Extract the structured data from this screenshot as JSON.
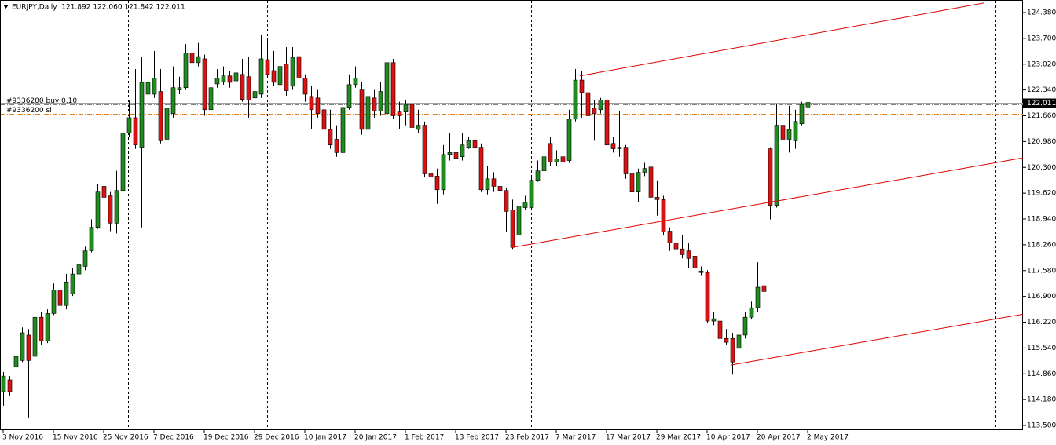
{
  "chart_data": {
    "type": "candlestick",
    "title": "EURJPY,Daily  121.892 122.060 121.842 122.011",
    "categories": [
      "3 Nov 2016",
      null,
      null,
      null,
      null,
      null,
      null,
      null,
      "15 Nov 2016",
      null,
      null,
      null,
      null,
      null,
      null,
      null,
      "25 Nov 2016",
      null,
      null,
      null,
      null,
      null,
      null,
      null,
      "7 Dec 2016",
      null,
      null,
      null,
      null,
      null,
      null,
      null,
      "19 Dec 2016",
      null,
      null,
      null,
      null,
      null,
      null,
      null,
      "29 Dec 2016",
      null,
      null,
      null,
      null,
      null,
      null,
      null,
      "10 Jan 2017",
      null,
      null,
      null,
      null,
      null,
      null,
      null,
      "20 Jan 2017",
      null,
      null,
      null,
      null,
      null,
      null,
      null,
      "1 Feb 2017",
      null,
      null,
      null,
      null,
      null,
      null,
      null,
      "13 Feb 2017",
      null,
      null,
      null,
      null,
      null,
      null,
      null,
      "23 Feb 2017",
      null,
      null,
      null,
      null,
      null,
      null,
      null,
      "7 Mar 2017",
      null,
      null,
      null,
      null,
      null,
      null,
      null,
      "17 Mar 2017",
      null,
      null,
      null,
      null,
      null,
      null,
      null,
      "29 Mar 2017",
      null,
      null,
      null,
      null,
      null,
      null,
      null,
      "10 Apr 2017",
      null,
      null,
      null,
      null,
      null,
      null,
      null,
      "20 Apr 2017",
      null,
      null,
      null,
      null,
      null,
      null,
      null,
      "2 May 2017"
    ],
    "open": [
      114.39,
      114.7,
      115.05,
      115.21,
      115.88,
      115.32,
      116.35,
      115.73,
      116.45,
      117.07,
      116.66,
      116.97,
      117.49,
      117.69,
      118.1,
      118.72,
      119.8,
      119.55,
      118.83,
      119.69,
      121.2,
      121.61,
      120.83,
      122.23,
      122.23,
      122.3,
      121.04,
      121.72,
      122.34,
      122.4,
      123.31,
      123.06,
      123.16,
      121.82,
      122.5,
      122.56,
      122.71,
      122.58,
      122.75,
      122.69,
      122.13,
      122.23,
      123.14,
      122.85,
      122.48,
      123.02,
      122.44,
      123.22,
      122.65,
      122.17,
      122.13,
      121.82,
      121.3,
      121.04,
      120.69,
      121.88,
      122.48,
      122.34,
      121.3,
      122.13,
      121.78,
      121.72,
      123.06,
      121.76,
      121.76,
      121.96,
      121.3,
      121.41,
      120.13,
      120.07,
      119.71,
      120.64,
      120.69,
      120.58,
      120.83,
      121.0,
      120.83,
      119.71,
      120.0,
      119.8,
      119.69,
      119.18,
      118.52,
      119.24,
      119.24,
      119.96,
      120.21,
      120.93,
      120.44,
      120.58,
      120.48,
      121.57,
      122.6,
      122.27,
      121.86,
      121.82,
      122.07,
      120.93,
      120.79,
      120.83,
      120.13,
      119.65,
      120.17,
      120.31,
      119.51,
      119.45,
      118.62,
      118.31,
      118.15,
      118.1,
      117.96,
      117.53,
      117.53,
      116.25,
      116.25,
      115.79,
      115.79,
      115.53,
      115.88,
      116.35,
      116.6,
      117.18,
      120.79,
      119.3,
      121.41,
      121.04,
      121.0,
      121.45,
      121.892
    ],
    "high": [
      114.91,
      114.8,
      115.46,
      116.08,
      116.04,
      116.56,
      116.5,
      116.56,
      117.24,
      117.18,
      117.49,
      117.65,
      117.9,
      118.21,
      118.93,
      119.86,
      120.17,
      119.65,
      120.21,
      121.3,
      122.07,
      122.89,
      123.22,
      122.89,
      123.37,
      122.89,
      122.96,
      122.96,
      122.69,
      123.55,
      124.13,
      123.58,
      123.27,
      123.02,
      122.89,
      122.96,
      122.85,
      123.06,
      123.16,
      123.22,
      122.75,
      123.78,
      123.68,
      123.37,
      123.27,
      123.47,
      123.47,
      123.78,
      122.75,
      122.44,
      122.34,
      122.07,
      121.82,
      121.41,
      122.13,
      122.75,
      122.96,
      122.54,
      122.4,
      122.34,
      122.54,
      123.31,
      123.16,
      122.03,
      122.07,
      122.13,
      121.82,
      121.51,
      120.58,
      120.27,
      120.89,
      121.2,
      120.89,
      121.2,
      121.1,
      121.1,
      120.93,
      120.33,
      120.17,
      119.96,
      119.76,
      119.45,
      119.45,
      119.55,
      120.07,
      120.48,
      121.16,
      121.1,
      120.75,
      120.79,
      121.82,
      122.89,
      122.85,
      122.44,
      122.07,
      122.13,
      122.23,
      121.1,
      121.78,
      120.89,
      120.38,
      120.27,
      120.42,
      120.48,
      119.96,
      119.55,
      118.72,
      118.83,
      118.52,
      118.31,
      118.21,
      117.69,
      117.59,
      116.5,
      116.45,
      116.04,
      115.94,
      115.94,
      116.5,
      116.76,
      117.8,
      117.32,
      120.83,
      121.96,
      121.72,
      121.92,
      121.82,
      122.03,
      122.06
    ],
    "low": [
      114.02,
      114.29,
      114.97,
      115.17,
      113.71,
      115.21,
      115.63,
      115.67,
      116.41,
      116.56,
      116.56,
      116.91,
      117.44,
      117.59,
      118.06,
      118.68,
      119.38,
      118.62,
      118.56,
      119.65,
      121.1,
      120.79,
      118.72,
      122.13,
      122.13,
      120.93,
      120.95,
      121.61,
      122.23,
      122.34,
      122.75,
      122.96,
      121.66,
      121.72,
      122.4,
      122.48,
      122.4,
      122.48,
      122.03,
      121.61,
      121.92,
      122.13,
      122.65,
      122.44,
      122.4,
      122.19,
      122.34,
      122.27,
      122.03,
      121.3,
      121.61,
      121.2,
      120.79,
      120.58,
      120.62,
      121.82,
      122.4,
      121.16,
      121.2,
      121.61,
      121.66,
      121.66,
      121.57,
      121.3,
      121.41,
      121.16,
      121.2,
      120.05,
      119.65,
      119.34,
      119.59,
      120.48,
      120.38,
      120.48,
      120.79,
      120.75,
      119.65,
      119.59,
      119.65,
      119.38,
      118.6,
      118.15,
      118.42,
      119.18,
      119.18,
      119.92,
      120.17,
      120.33,
      120.33,
      120.07,
      120.42,
      121.51,
      121.61,
      121.61,
      121.0,
      121.72,
      120.83,
      120.69,
      120.58,
      120.0,
      119.3,
      119.38,
      120.07,
      119.03,
      119.03,
      118.52,
      118.1,
      117.53,
      117.9,
      117.65,
      117.38,
      117.44,
      116.21,
      116.14,
      115.73,
      115.63,
      114.84,
      115.32,
      115.79,
      116.29,
      116.5,
      116.5,
      118.93,
      119.24,
      120.89,
      120.69,
      120.79,
      121.41,
      121.842
    ],
    "close": [
      114.8,
      114.39,
      115.32,
      115.94,
      115.21,
      116.35,
      115.73,
      116.45,
      117.07,
      116.66,
      117.28,
      117.49,
      117.73,
      118.1,
      118.72,
      119.65,
      119.51,
      118.83,
      119.69,
      121.2,
      121.61,
      120.89,
      122.54,
      122.54,
      122.65,
      121.0,
      121.86,
      122.4,
      122.4,
      123.31,
      123.06,
      123.22,
      121.82,
      122.4,
      122.65,
      122.71,
      122.54,
      122.79,
      122.09,
      122.07,
      122.3,
      123.16,
      122.75,
      122.54,
      122.96,
      122.32,
      123.2,
      122.65,
      122.23,
      121.82,
      121.72,
      121.3,
      120.89,
      120.69,
      121.88,
      122.48,
      122.65,
      121.3,
      122.17,
      121.78,
      122.3,
      123.06,
      121.66,
      121.66,
      121.96,
      121.35,
      121.41,
      120.13,
      120.05,
      119.71,
      120.64,
      120.69,
      120.54,
      120.89,
      121.0,
      120.83,
      119.71,
      120.0,
      119.8,
      119.69,
      119.14,
      118.19,
      119.28,
      119.38,
      119.96,
      120.21,
      120.58,
      120.44,
      120.52,
      120.44,
      121.57,
      122.6,
      122.27,
      121.66,
      121.72,
      122.07,
      120.89,
      120.79,
      120.83,
      120.13,
      119.65,
      120.17,
      120.27,
      119.51,
      119.45,
      118.6,
      118.31,
      118.15,
      118.0,
      117.9,
      117.65,
      117.57,
      116.25,
      116.31,
      115.79,
      115.69,
      115.17,
      115.88,
      116.35,
      116.6,
      117.14,
      117.03,
      119.3,
      121.41,
      121.04,
      121.3,
      121.51,
      121.96,
      122.011
    ],
    "up_color": "#1e8c1e",
    "down_color": "#dd1111",
    "wick_color": "#000000",
    "ylim": [
      113.376,
      124.711
    ],
    "yticks": [
      {
        "value": 124.38,
        "label": "124.380"
      },
      {
        "value": 123.7,
        "label": "123.700"
      },
      {
        "value": 123.02,
        "label": "123.020"
      },
      {
        "value": 122.34,
        "label": "122.340"
      },
      {
        "value": 121.66,
        "label": "121.660"
      },
      {
        "value": 120.98,
        "label": "120.980"
      },
      {
        "value": 120.3,
        "label": "120.300"
      },
      {
        "value": 119.62,
        "label": "119.620"
      },
      {
        "value": 118.94,
        "label": "118.940"
      },
      {
        "value": 118.26,
        "label": "118.260"
      },
      {
        "value": 117.58,
        "label": "117.580"
      },
      {
        "value": 116.9,
        "label": "116.900"
      },
      {
        "value": 116.22,
        "label": "116.220"
      },
      {
        "value": 115.54,
        "label": "115.540"
      },
      {
        "value": 114.86,
        "label": "114.860"
      },
      {
        "value": 114.18,
        "label": "114.180"
      },
      {
        "value": 113.5,
        "label": "113.500"
      }
    ],
    "bid": 122.011,
    "order_lines": [
      {
        "label": "#9336200 buy 0.10",
        "value": 121.96,
        "color": "#808080"
      },
      {
        "label": "#9336200 sl",
        "value": 121.72,
        "color": "#e08020"
      }
    ],
    "trendline_color": "#e00000",
    "trendlines": [
      {
        "x": [
          91.75,
          156
        ],
        "y": [
          122.71,
          124.63
        ]
      },
      {
        "x": [
          81,
          162.25
        ],
        "y": [
          118.19,
          120.55
        ]
      },
      {
        "x": [
          115.75,
          162.25
        ],
        "y": [
          115.09,
          116.43
        ]
      }
    ]
  }
}
